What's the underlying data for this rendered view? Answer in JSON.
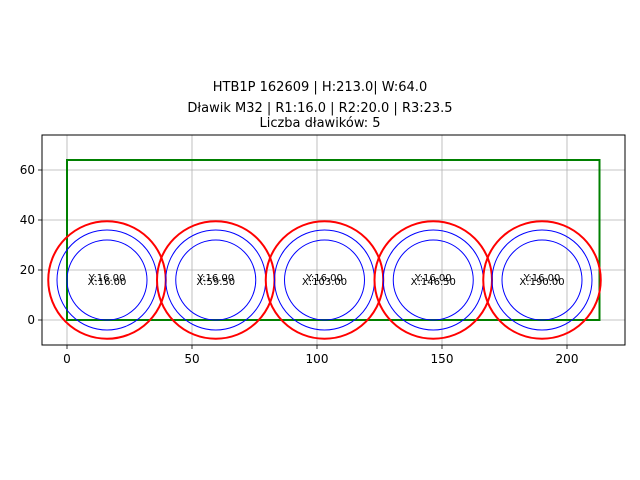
{
  "title": {
    "line1": "HTB1P 162609 | H:213.0| W:64.0",
    "line2": "Dławik M32 | R1:16.0 | R2:20.0 | R3:23.5",
    "line3": "Liczba dławików: 5"
  },
  "colors": {
    "rect": "#008000",
    "outer_circle": "#ff0000",
    "inner_circles": "#0000ff",
    "grid": "#b0b0b0"
  },
  "chart_data": {
    "type": "scatter",
    "title": "HTB1P 162609 | H:213.0| W:64.0 / Dławik M32 | R1:16.0 | R2:20.0 | R3:23.5 / Liczba dławików: 5",
    "xlabel": "",
    "ylabel": "",
    "xlim": [
      -10,
      223.2
    ],
    "ylim": [
      -10,
      74
    ],
    "grid": true,
    "xticks": [
      0,
      50,
      100,
      150,
      200
    ],
    "yticks": [
      0,
      20,
      40,
      60
    ],
    "rectangle": {
      "x": 0,
      "y": 0,
      "width": 213.0,
      "height": 64.0,
      "color": "green"
    },
    "radii": {
      "R1": 16.0,
      "R2": 20.0,
      "R3": 23.5
    },
    "circles": [
      {
        "x": 16.0,
        "y": 16.0,
        "label_x": "X:16.00",
        "label_y": "Y:16.00"
      },
      {
        "x": 59.5,
        "y": 16.0,
        "label_x": "X:59.50",
        "label_y": "Y:16.00"
      },
      {
        "x": 103.0,
        "y": 16.0,
        "label_x": "X:103.00",
        "label_y": "Y:16.00"
      },
      {
        "x": 146.5,
        "y": 16.0,
        "label_x": "X:146.50",
        "label_y": "Y:16.00"
      },
      {
        "x": 190.0,
        "y": 16.0,
        "label_x": "X:190.00",
        "label_y": "Y:16.00"
      }
    ]
  }
}
